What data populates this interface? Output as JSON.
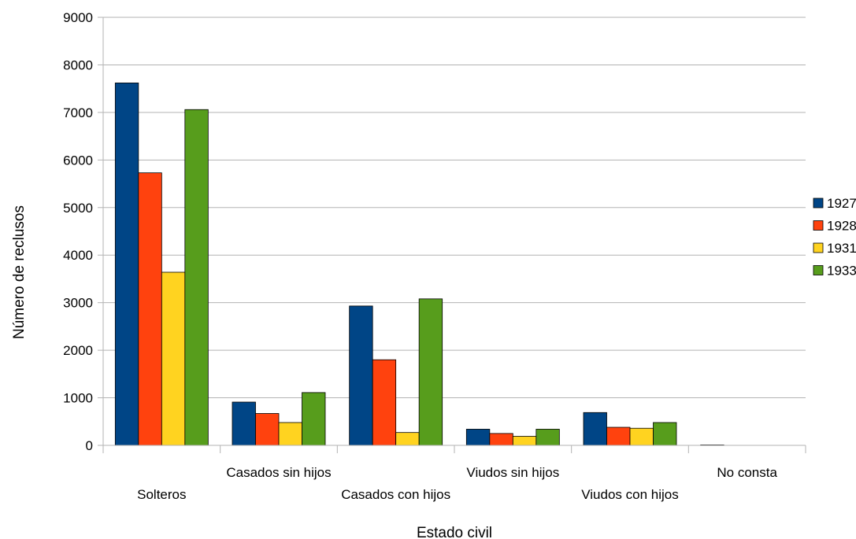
{
  "chart_data": {
    "type": "bar",
    "title": "",
    "xlabel": "Estado civil",
    "ylabel": "Número de reclusos",
    "ylim": [
      0,
      9000
    ],
    "yticks": [
      0,
      1000,
      2000,
      3000,
      4000,
      5000,
      6000,
      7000,
      8000,
      9000
    ],
    "grid": true,
    "legend_position": "right",
    "categories": [
      "Solteros",
      "Casados sin hijos",
      "Casados con hijos",
      "Viudos sin hijos",
      "Viudos con hijos",
      "No consta"
    ],
    "series": [
      {
        "name": "1927",
        "color": "#004586",
        "values": [
          7620,
          910,
          2930,
          340,
          690,
          10
        ]
      },
      {
        "name": "1928",
        "color": "#ff420e",
        "values": [
          5730,
          670,
          1800,
          250,
          380,
          0
        ]
      },
      {
        "name": "1931",
        "color": "#ffd320",
        "values": [
          3640,
          480,
          270,
          190,
          360,
          0
        ]
      },
      {
        "name": "1933",
        "color": "#579d1c",
        "values": [
          7060,
          1110,
          3080,
          340,
          480,
          0
        ]
      }
    ]
  }
}
